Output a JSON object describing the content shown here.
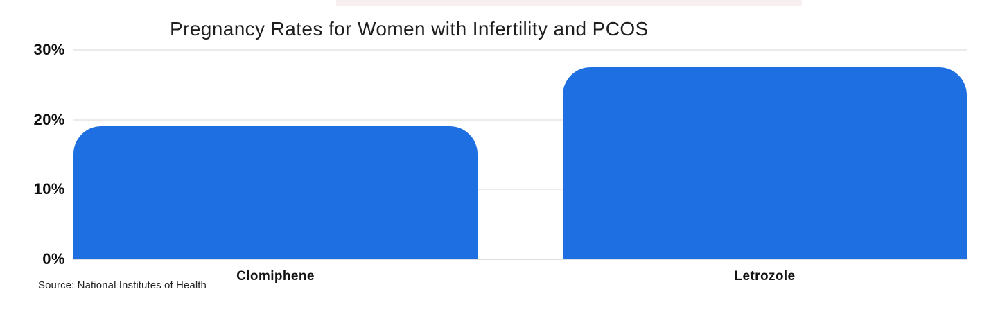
{
  "chart_data": {
    "type": "bar",
    "title": "Pregnancy Rates for Women with Infertility and PCOS",
    "categories": [
      "Clomiphene",
      "Letrozole"
    ],
    "values": [
      19.1,
      27.5
    ],
    "unit": "%",
    "xlabel": "",
    "ylabel": "",
    "ylim": [
      0,
      30
    ],
    "ytick_values": [
      0,
      10,
      20,
      30
    ],
    "ytick_labels": [
      "0%",
      "10%",
      "20%",
      "30%"
    ],
    "grid": true,
    "legend": false,
    "source": "Source: National Institutes of Health"
  },
  "colors": {
    "bar": "#1E6FE1",
    "grid": "#ebebeb",
    "baseline": "#dedede",
    "text": "#141414",
    "top_stripe": "#f8f0f0"
  }
}
